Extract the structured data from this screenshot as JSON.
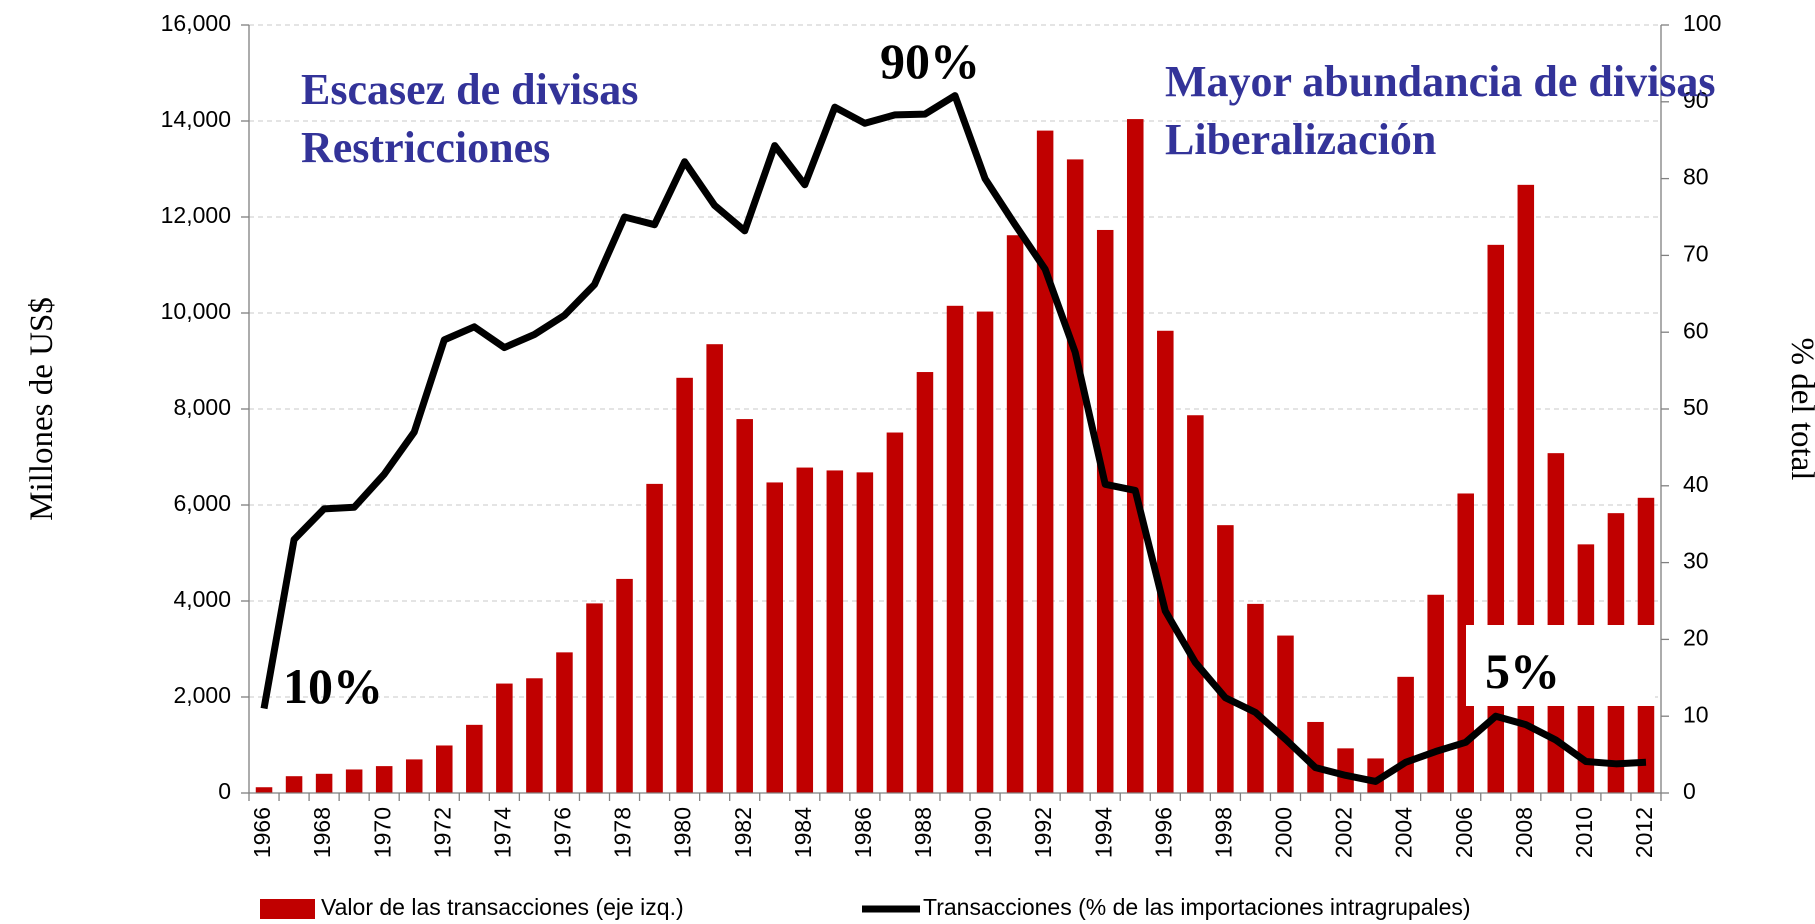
{
  "chart_data": {
    "type": "bar_line",
    "categories": [
      "1966",
      null,
      "1968",
      null,
      "1970",
      null,
      "1972",
      null,
      "1974",
      null,
      "1976",
      null,
      "1978",
      null,
      "1980",
      null,
      "1982",
      null,
      "1984",
      null,
      "1986",
      null,
      "1988",
      null,
      "1990",
      null,
      "1992",
      null,
      "1994",
      null,
      "1996",
      null,
      "1998",
      null,
      "2000",
      null,
      "2002",
      null,
      "2004",
      null,
      "2006",
      null,
      "2008",
      null,
      "2010",
      null,
      "2012"
    ],
    "series": [
      {
        "name": "Valor de las transacciones (eje izq.)",
        "type": "bar",
        "color": "#c00000",
        "values": [
          120,
          350,
          400,
          490,
          560,
          700,
          990,
          1420,
          2280,
          2390,
          2930,
          3950,
          4460,
          6440,
          8650,
          9350,
          7790,
          6470,
          6780,
          6720,
          6680,
          7510,
          8770,
          10150,
          10030,
          11620,
          13800,
          13200,
          11730,
          14040,
          9630,
          7870,
          5580,
          3940,
          3280,
          1480,
          930,
          720,
          2420,
          4130,
          6240,
          11420,
          12670,
          7080,
          5180,
          5830,
          6150
        ]
      },
      {
        "name": "Transacciones (% de las importaciones intragrupales)",
        "type": "line",
        "axis": "y2",
        "color": "#000000",
        "values": [
          11,
          33,
          37,
          37.2,
          41.5,
          47,
          59,
          60.7,
          58,
          59.7,
          62.2,
          66.2,
          75,
          74,
          82.2,
          76.5,
          73.2,
          84.3,
          79.2,
          89.3,
          87.2,
          88.3,
          88.4,
          90.8,
          80,
          74,
          68.2,
          57.4,
          40.2,
          39.4,
          23.7,
          17,
          12.4,
          10.5,
          7,
          3.3,
          2.3,
          1.5,
          4,
          5.4,
          6.6,
          10,
          8.9,
          6.9,
          4.1,
          3.8,
          4
        ]
      }
    ],
    "ylabel": "Millones de US$",
    "y2label": "% del total",
    "ylim": [
      0,
      16000
    ],
    "yticks": [
      0,
      {
        "value": 2000,
        "label": "2,000"
      },
      {
        "value": 4000,
        "label": "4,000"
      },
      {
        "value": 6000,
        "label": "6,000"
      },
      {
        "value": 8000,
        "label": "8,000"
      },
      {
        "value": 10000,
        "label": "10,000"
      },
      {
        "value": 12000,
        "label": "12,000"
      },
      {
        "value": 14000,
        "label": "14,000"
      },
      {
        "value": 16000,
        "label": "16,000"
      }
    ],
    "y2lim": [
      0,
      100
    ],
    "y2ticks": [
      0,
      10,
      20,
      30,
      40,
      50,
      60,
      70,
      80,
      90,
      100
    ],
    "grid": true,
    "annotations": [
      "Escasez de divisas",
      "Restricciones",
      "Mayor abundancia de divisas",
      "Liberalización",
      "10%",
      "90%",
      "5%"
    ]
  }
}
